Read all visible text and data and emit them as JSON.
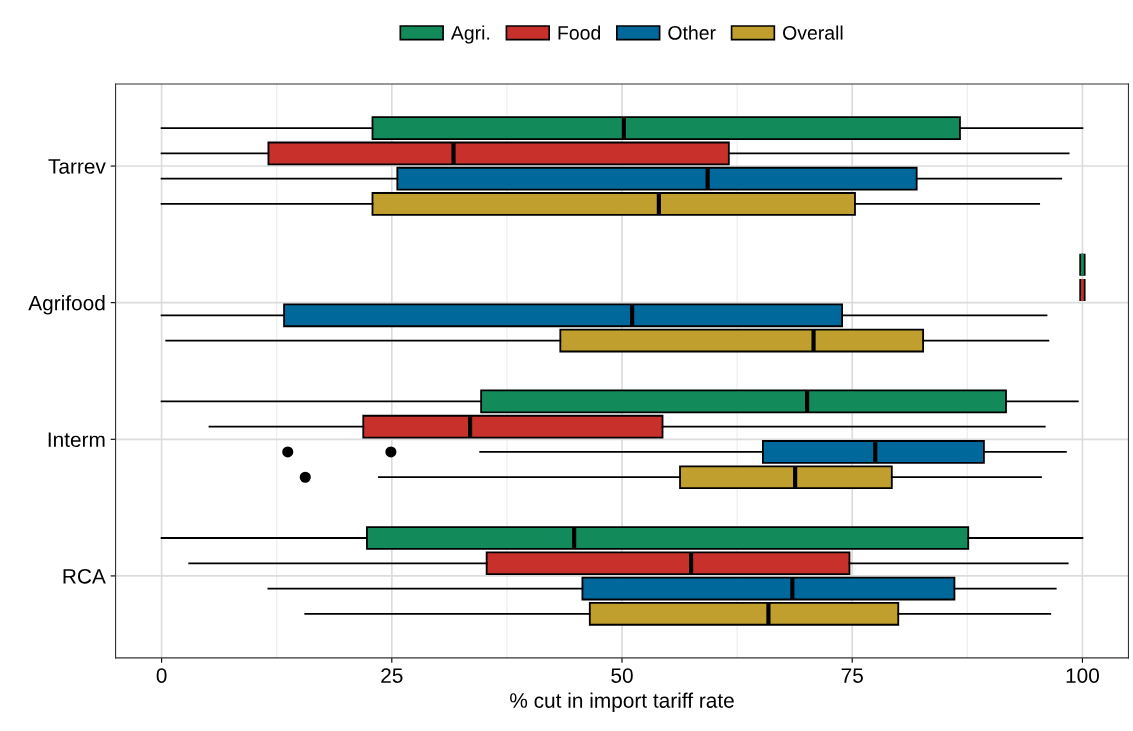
{
  "chart_data": {
    "type": "box",
    "orientation": "horizontal",
    "xlabel": "% cut in import tariff rate",
    "categories": [
      "Tarrev",
      "Agrifood",
      "Interm",
      "RCA"
    ],
    "xlim": [
      -5,
      105
    ],
    "xticks": [
      0,
      25,
      50,
      75,
      100
    ],
    "grid": true,
    "legend": "top",
    "series": [
      {
        "name": "Agri.",
        "color": "#138a5a",
        "boxes": [
          {
            "low": 0,
            "q1": 22.9,
            "median": 50.2,
            "q3": 86.7,
            "high": 100
          },
          {
            "low": 100,
            "q1": 100,
            "median": 100,
            "q3": 100,
            "high": 100
          },
          {
            "low": 0,
            "q1": 34.7,
            "median": 70.1,
            "q3": 91.7,
            "high": 99.5
          },
          {
            "low": 0,
            "q1": 22.3,
            "median": 44.8,
            "q3": 87.6,
            "high": 100
          }
        ]
      },
      {
        "name": "Food",
        "color": "#c8302b",
        "boxes": [
          {
            "low": 0,
            "q1": 11.6,
            "median": 31.7,
            "q3": 61.6,
            "high": 98.5
          },
          {
            "low": 100,
            "q1": 100,
            "median": 100,
            "q3": 100,
            "high": 100
          },
          {
            "low": 5.2,
            "q1": 21.9,
            "median": 33.5,
            "q3": 54.4,
            "high": 95.9
          },
          {
            "low": 3.0,
            "q1": 35.3,
            "median": 57.5,
            "q3": 74.7,
            "high": 98.4
          }
        ]
      },
      {
        "name": "Other",
        "color": "#00689a",
        "boxes": [
          {
            "low": 0,
            "q1": 25.6,
            "median": 59.3,
            "q3": 82.0,
            "high": 97.7
          },
          {
            "low": 0,
            "q1": 13.3,
            "median": 51.1,
            "q3": 73.9,
            "high": 96.1
          },
          {
            "low": 34.6,
            "q1": 65.3,
            "median": 77.5,
            "q3": 89.3,
            "high": 98.2,
            "outliers": [
              13.7,
              24.9
            ]
          },
          {
            "low": 11.6,
            "q1": 45.7,
            "median": 68.5,
            "q3": 86.1,
            "high": 97.1
          }
        ]
      },
      {
        "name": "Overall",
        "color": "#c09f2f",
        "boxes": [
          {
            "low": 0,
            "q1": 22.9,
            "median": 54.0,
            "q3": 75.3,
            "high": 95.3
          },
          {
            "low": 0.5,
            "q1": 43.3,
            "median": 70.8,
            "q3": 82.7,
            "high": 96.3
          },
          {
            "low": 23.6,
            "q1": 56.3,
            "median": 68.8,
            "q3": 79.3,
            "high": 95.5,
            "outliers": [
              15.6
            ]
          },
          {
            "low": 15.6,
            "q1": 46.5,
            "median": 65.9,
            "q3": 80.0,
            "high": 96.5
          }
        ]
      }
    ]
  }
}
